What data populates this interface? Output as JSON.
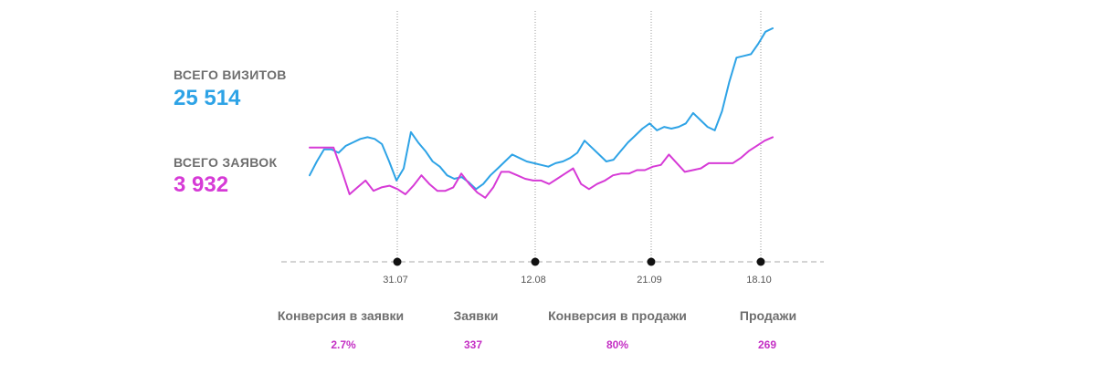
{
  "summary": {
    "visits_label": "ВСЕГО ВИЗИТОВ",
    "visits_value": "25 514",
    "requests_label": "ВСЕГО ЗАЯВОК",
    "requests_value": "3 932"
  },
  "colors": {
    "visits": "#2ea3e6",
    "requests": "#d63ad6",
    "label": "#6e6e6e"
  },
  "metrics": [
    {
      "label": "Конверсия в заявки",
      "value": "2.7%"
    },
    {
      "label": "Заявки",
      "value": "337"
    },
    {
      "label": "Конверсия в продажи",
      "value": "80%"
    },
    {
      "label": "Продажи",
      "value": "269"
    }
  ],
  "chart_data": {
    "type": "line",
    "x_tick_labels": [
      "31.07",
      "12.08",
      "21.09",
      "18.10"
    ],
    "grid": false,
    "series": [
      {
        "key": "visits",
        "values": [
          150,
          158,
          165,
          165,
          163,
          167,
          169,
          171,
          172,
          171,
          168,
          158,
          147,
          154,
          175,
          169,
          164,
          158,
          155,
          150,
          148,
          149,
          146,
          142,
          145,
          150,
          154,
          158,
          162,
          160,
          158,
          157,
          156,
          155,
          157,
          158,
          160,
          163,
          170,
          166,
          162,
          158,
          159,
          164,
          169,
          173,
          177,
          180,
          176,
          178,
          177,
          178,
          180,
          186,
          182,
          178,
          176,
          187,
          204,
          218,
          219,
          220,
          226,
          233,
          235
        ]
      },
      {
        "key": "requests",
        "values": [
          166,
          166,
          166,
          166,
          153,
          139,
          143,
          147,
          141,
          143,
          144,
          142,
          139,
          144,
          150,
          145,
          141,
          141,
          143,
          151,
          145,
          140,
          137,
          143,
          152,
          152,
          150,
          148,
          147,
          147,
          145,
          148,
          151,
          154,
          145,
          142,
          145,
          147,
          150,
          151,
          151,
          153,
          153,
          155,
          156,
          162,
          157,
          152,
          153,
          154,
          157,
          157,
          157,
          157,
          160,
          164,
          167,
          170,
          172
        ]
      }
    ]
  }
}
